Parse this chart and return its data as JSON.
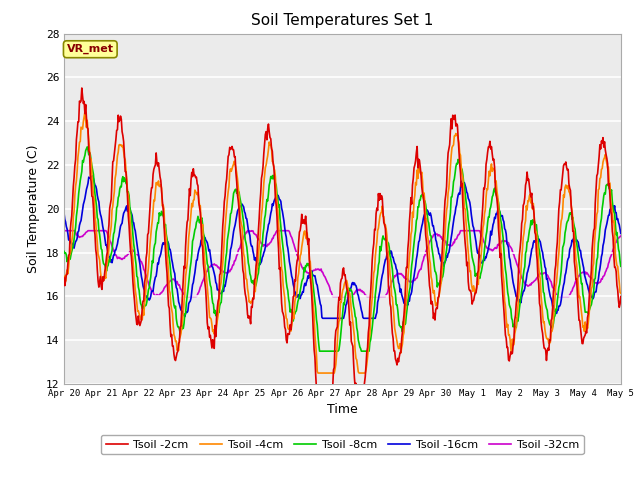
{
  "title": "Soil Temperatures Set 1",
  "xlabel": "Time",
  "ylabel": "Soil Temperature (C)",
  "ylim": [
    12,
    28
  ],
  "yticks": [
    12,
    14,
    16,
    18,
    20,
    22,
    24,
    26,
    28
  ],
  "annotation_text": "VR_met",
  "legend_labels": [
    "Tsoil -2cm",
    "Tsoil -4cm",
    "Tsoil -8cm",
    "Tsoil -16cm",
    "Tsoil -32cm"
  ],
  "line_colors": [
    "#dd0000",
    "#ff8800",
    "#00cc00",
    "#0000dd",
    "#cc00cc"
  ],
  "xtick_labels": [
    "Apr 20",
    "Apr 21",
    "Apr 22",
    "Apr 23",
    "Apr 24",
    "Apr 25",
    "Apr 26",
    "Apr 27",
    "Apr 28",
    "Apr 29",
    "Apr 30",
    "May 1",
    "May 2",
    "May 3",
    "May 4",
    "May 5"
  ],
  "num_days": 15,
  "pts_per_day": 48,
  "fig_bg": "#ffffff",
  "plot_bg": "#ebebeb"
}
